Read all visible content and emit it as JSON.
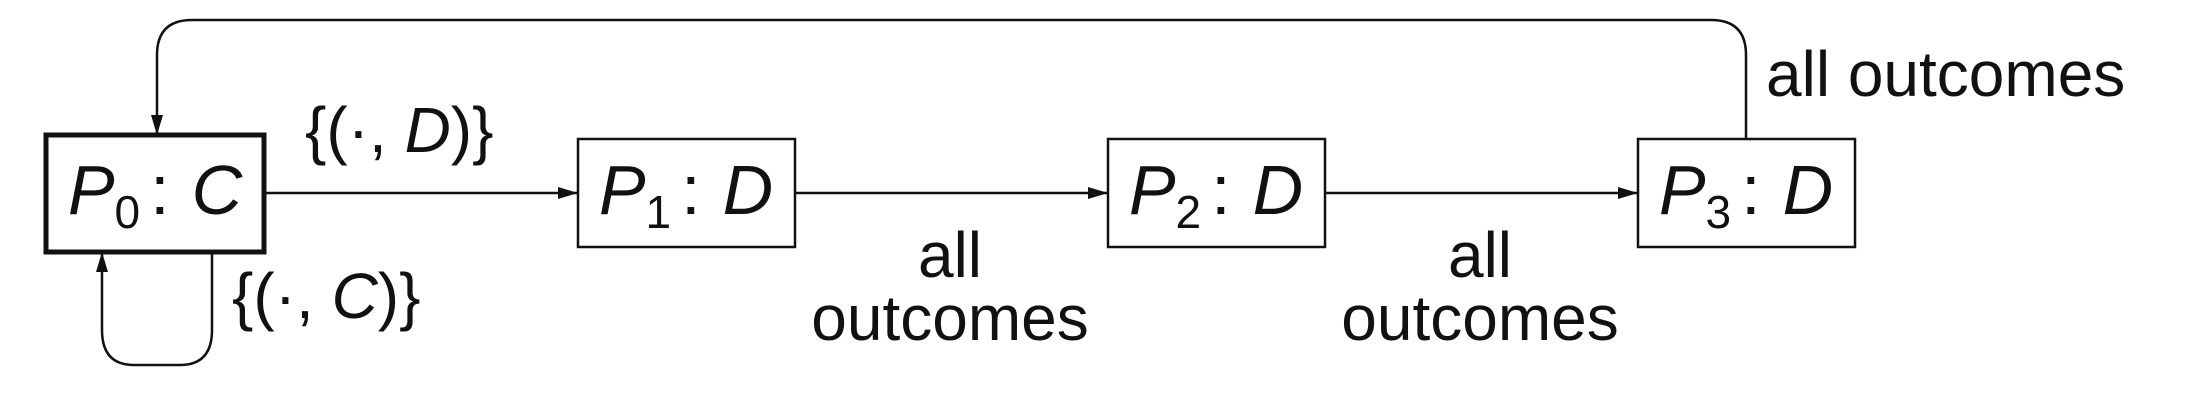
{
  "colors": {
    "stroke": "#111111",
    "text": "#111111",
    "background": "#ffffff"
  },
  "states": [
    {
      "id": "P0",
      "name": "P",
      "sub": "0",
      "sep": ":",
      "action": "C",
      "initial": true
    },
    {
      "id": "P1",
      "name": "P",
      "sub": "1",
      "sep": ":",
      "action": "D",
      "initial": false
    },
    {
      "id": "P2",
      "name": "P",
      "sub": "2",
      "sep": ":",
      "action": "D",
      "initial": false
    },
    {
      "id": "P3",
      "name": "P",
      "sub": "3",
      "sep": ":",
      "action": "D",
      "initial": false
    }
  ],
  "transitions": [
    {
      "from": "P0",
      "to": "P1",
      "label": {
        "open": "{(",
        "dot": "·",
        "comma": ", ",
        "action": "D",
        "close": ")}"
      }
    },
    {
      "from": "P0",
      "to": "P0",
      "label": {
        "open": "{(",
        "dot": "·",
        "comma": ", ",
        "action": "C",
        "close": ")}"
      }
    },
    {
      "from": "P1",
      "to": "P2",
      "label": {
        "line1": "all",
        "line2": "outcomes"
      }
    },
    {
      "from": "P2",
      "to": "P3",
      "label": {
        "line1": "all",
        "line2": "outcomes"
      }
    },
    {
      "from": "P3",
      "to": "P0",
      "label": {
        "text": "all outcomes"
      }
    }
  ]
}
